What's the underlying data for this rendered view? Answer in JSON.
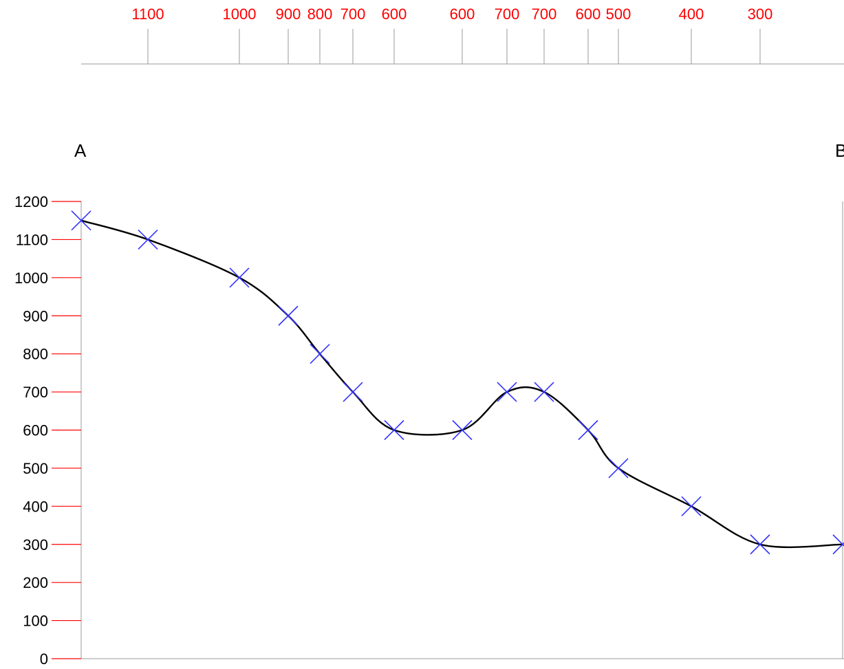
{
  "chart_data": {
    "type": "line",
    "title": "",
    "end_labels": {
      "start": "A",
      "end": "B"
    },
    "ylabel": "",
    "xlabel": "",
    "ylim": [
      0,
      1200
    ],
    "y_ticks": [
      0,
      100,
      200,
      300,
      400,
      500,
      600,
      700,
      800,
      900,
      1000,
      1100,
      1200
    ],
    "contour_crossings": [
      {
        "label": "1100",
        "value": 1100
      },
      {
        "label": "1000",
        "value": 1000
      },
      {
        "label": "900",
        "value": 900
      },
      {
        "label": "800",
        "value": 800
      },
      {
        "label": "700",
        "value": 700
      },
      {
        "label": "600",
        "value": 600
      },
      {
        "label": "600",
        "value": 600
      },
      {
        "label": "700",
        "value": 700
      },
      {
        "label": "700",
        "value": 700
      },
      {
        "label": "600",
        "value": 600
      },
      {
        "label": "500",
        "value": 500
      },
      {
        "label": "400",
        "value": 400
      },
      {
        "label": "300",
        "value": 300
      }
    ],
    "profile_points": [
      {
        "distance": 0,
        "height": 1150
      },
      {
        "distance": 97,
        "height": 1100
      },
      {
        "distance": 230,
        "height": 1000
      },
      {
        "distance": 301,
        "height": 900
      },
      {
        "distance": 347,
        "height": 800
      },
      {
        "distance": 395,
        "height": 700
      },
      {
        "distance": 455,
        "height": 600
      },
      {
        "distance": 554,
        "height": 600
      },
      {
        "distance": 619,
        "height": 700
      },
      {
        "distance": 673,
        "height": 700
      },
      {
        "distance": 737,
        "height": 600
      },
      {
        "distance": 781,
        "height": 500
      },
      {
        "distance": 887,
        "height": 400
      },
      {
        "distance": 987,
        "height": 300
      },
      {
        "distance": 1107,
        "height": 300
      }
    ],
    "colors": {
      "tick_labels_top": "#ff0000",
      "y_tick_marks": "#ff0000",
      "markers": "#3333ff",
      "curve": "#000000",
      "guide_lines": "#999999"
    },
    "marker_shape": "x-cross",
    "grid": false
  }
}
